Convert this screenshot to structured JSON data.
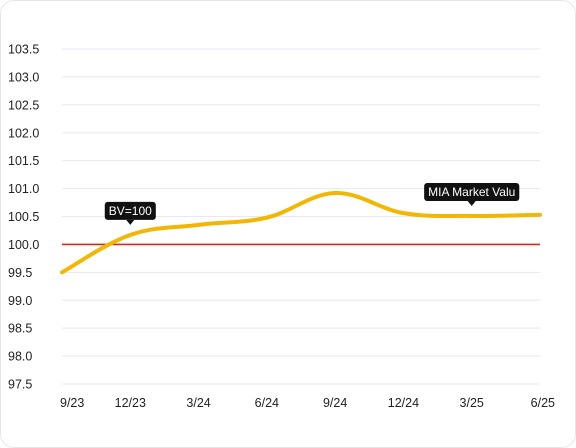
{
  "chart_data": {
    "type": "line",
    "x": [
      "9/23",
      "12/23",
      "3/24",
      "6/24",
      "9/24",
      "12/24",
      "3/25",
      "6/25"
    ],
    "series": [
      {
        "values": [
          99.5,
          100.17,
          100.35,
          100.48,
          100.92,
          100.56,
          100.51,
          100.53
        ]
      }
    ],
    "ylim": [
      97.5,
      103.5
    ],
    "yticks": [
      97.5,
      98.0,
      98.5,
      99.0,
      99.5,
      100.0,
      100.5,
      101.0,
      101.5,
      102.0,
      102.5,
      103.0,
      103.5
    ],
    "reference_line": {
      "value": 100.0
    },
    "annotations": [
      {
        "text": "BV=100",
        "x": "12/23",
        "y": 100.17
      },
      {
        "text": "MIA Market Valu",
        "x": "3/25",
        "y": 100.51
      }
    ],
    "grid": true,
    "colors": {
      "series": "#f2b705",
      "reference": "#d22b1f",
      "grid": "#e8e8f0"
    }
  }
}
